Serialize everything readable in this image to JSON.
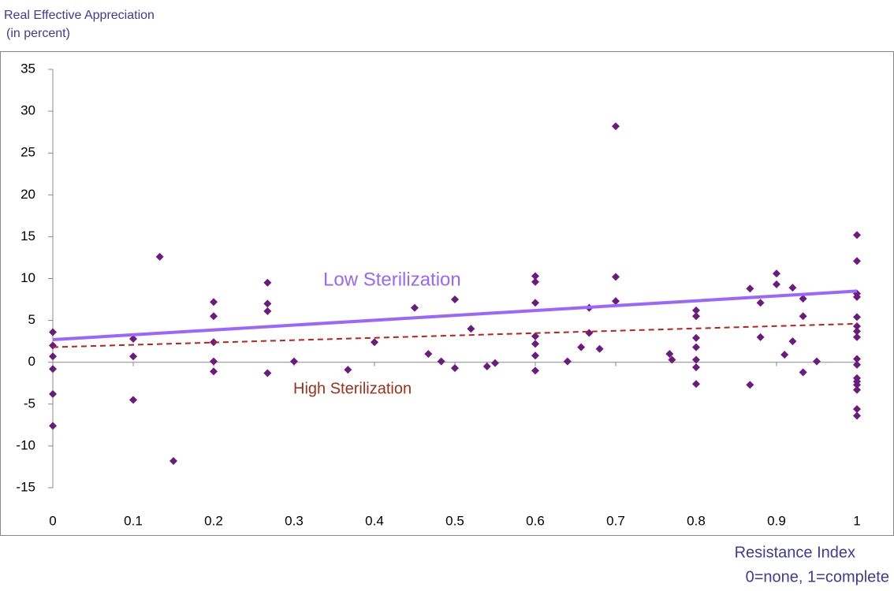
{
  "chart_data": {
    "type": "scatter",
    "y_label_lines": [
      "Real Effective Appreciation",
      "(in percent)"
    ],
    "x_label_lines": [
      "Resistance Index",
      "0=none, 1=complete"
    ],
    "marker_color": "#6b1a7e",
    "x": [
      0,
      0,
      0,
      0,
      0,
      0,
      0.1,
      0.1,
      0.1,
      0.133,
      0.15,
      0.2,
      0.2,
      0.2,
      0.2,
      0.2,
      0.267,
      0.267,
      0.267,
      0.267,
      0.3,
      0.367,
      0.4,
      0.45,
      0.467,
      0.483,
      0.5,
      0.5,
      0.52,
      0.54,
      0.55,
      0.6,
      0.6,
      0.6,
      0.6,
      0.6,
      0.6,
      0.6,
      0.64,
      0.657,
      0.667,
      0.667,
      0.68,
      0.7,
      0.7,
      0.7,
      0.767,
      0.77,
      0.8,
      0.8,
      0.8,
      0.8,
      0.8,
      0.8,
      0.8,
      0.867,
      0.867,
      0.88,
      0.88,
      0.9,
      0.9,
      0.91,
      0.92,
      0.92,
      0.933,
      0.933,
      0.933,
      0.95,
      1,
      1,
      1,
      1,
      1,
      1,
      1,
      1,
      1,
      1,
      1,
      1,
      1,
      1,
      1,
      1
    ],
    "values": [
      3.6,
      2,
      0.7,
      -0.8,
      -3.8,
      -7.6,
      2.8,
      0.7,
      -4.5,
      12.6,
      -11.8,
      7.2,
      5.5,
      2.4,
      0.1,
      -1.1,
      9.5,
      7,
      6.1,
      -1.3,
      0.1,
      -0.9,
      2.4,
      6.5,
      1,
      0.1,
      7.5,
      -0.7,
      4,
      -0.5,
      -0.1,
      10.3,
      9.6,
      7.1,
      3.1,
      2.2,
      0.8,
      -1,
      0.1,
      1.8,
      6.5,
      3.5,
      1.6,
      28.2,
      10.2,
      7.3,
      1,
      0.3,
      6.2,
      5.5,
      2.9,
      1.8,
      0.3,
      -0.6,
      -2.6,
      8.8,
      -2.7,
      7.1,
      3,
      10.6,
      9.3,
      0.9,
      8.9,
      2.5,
      7.6,
      5.5,
      -1.2,
      0.1,
      15.2,
      12.1,
      8.2,
      7.8,
      5.4,
      4.3,
      3.7,
      3,
      0.4,
      -0.3,
      -1.9,
      -2.3,
      -2.7,
      -3.3,
      -5.6,
      -6.4
    ],
    "trend_lines": [
      {
        "label": "Low Sterilization",
        "color": "#9966ff",
        "dashed": false,
        "x": [
          0,
          1
        ],
        "values": [
          2.7,
          8.5
        ]
      },
      {
        "label": "High Sterilization",
        "color": "#c0201a",
        "dashed": true,
        "x": [
          0,
          1
        ],
        "values": [
          1.8,
          4.6
        ]
      }
    ],
    "xlim": [
      0,
      1
    ],
    "xticks": [
      0,
      0.1,
      0.2,
      0.3,
      0.4,
      0.5,
      0.6,
      0.7,
      0.8,
      0.9,
      1
    ],
    "ylim": [
      -15,
      35
    ],
    "yticks": [
      -15,
      -10,
      -5,
      0,
      5,
      10,
      15,
      20,
      25,
      30,
      35
    ]
  }
}
